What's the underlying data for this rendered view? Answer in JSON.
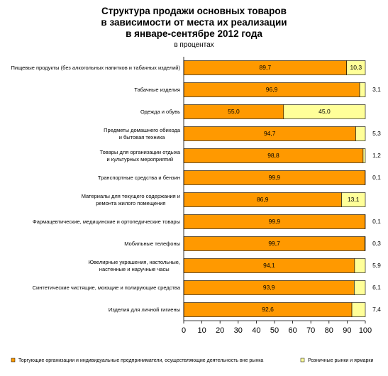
{
  "chart_data": {
    "type": "stacked-barh",
    "title": "Структура продажи основных товаров\nв зависимости от места их реализации\nв январе-сентябре 2012 года",
    "subtitle": "в процентах",
    "categories": [
      "Пищевые продукты (без алкогольных напитков и табачных изделий)",
      "Табачные изделия",
      "Одежда и обувь",
      "Предметы домашнего обихода\nи бытовая техника",
      "Товары для организации отдыха\nи культурных мероприятий",
      "Транспортные средства и бензин",
      "Материалы для текущего содержания и\nремонта жилого помещения",
      "Фармацевтические, медицинские и ортопедические товары",
      "Мобильные телефоны",
      "Ювелирные украшения, настольные,\nнастенные и наручные часы",
      "Синтетические чистящие, моющие и полирующие средства",
      "Изделия для личной гигиены"
    ],
    "series": [
      {
        "name": "Торгующие организации и индивидуальные предприниматели, осуществляющие деятельность вне рынка",
        "color": "#ff9900",
        "values": [
          89.7,
          96.9,
          55.0,
          94.7,
          98.8,
          99.9,
          86.9,
          99.9,
          99.7,
          94.1,
          93.9,
          92.6
        ],
        "value_labels": [
          "89,7",
          "96,9",
          "55,0",
          "94,7",
          "98,8",
          "99,9",
          "86,9",
          "99,9",
          "99,7",
          "94,1",
          "93,9",
          "92,6"
        ]
      },
      {
        "name": "Розничные рынки и ярмарки",
        "color": "#ffff99",
        "values": [
          10.3,
          3.1,
          45.0,
          5.3,
          1.2,
          0.1,
          13.1,
          0.1,
          0.3,
          5.9,
          6.1,
          7.4
        ],
        "value_labels": [
          "10,3",
          "3,1",
          "45,0",
          "5,3",
          "1,2",
          "0,1",
          "13,1",
          "0,1",
          "0,3",
          "5,9",
          "6,1",
          "7,4"
        ]
      }
    ],
    "xlim": [
      0,
      100
    ],
    "xticks": [
      0,
      10,
      20,
      30,
      40,
      50,
      60,
      70,
      80,
      90,
      100
    ]
  }
}
